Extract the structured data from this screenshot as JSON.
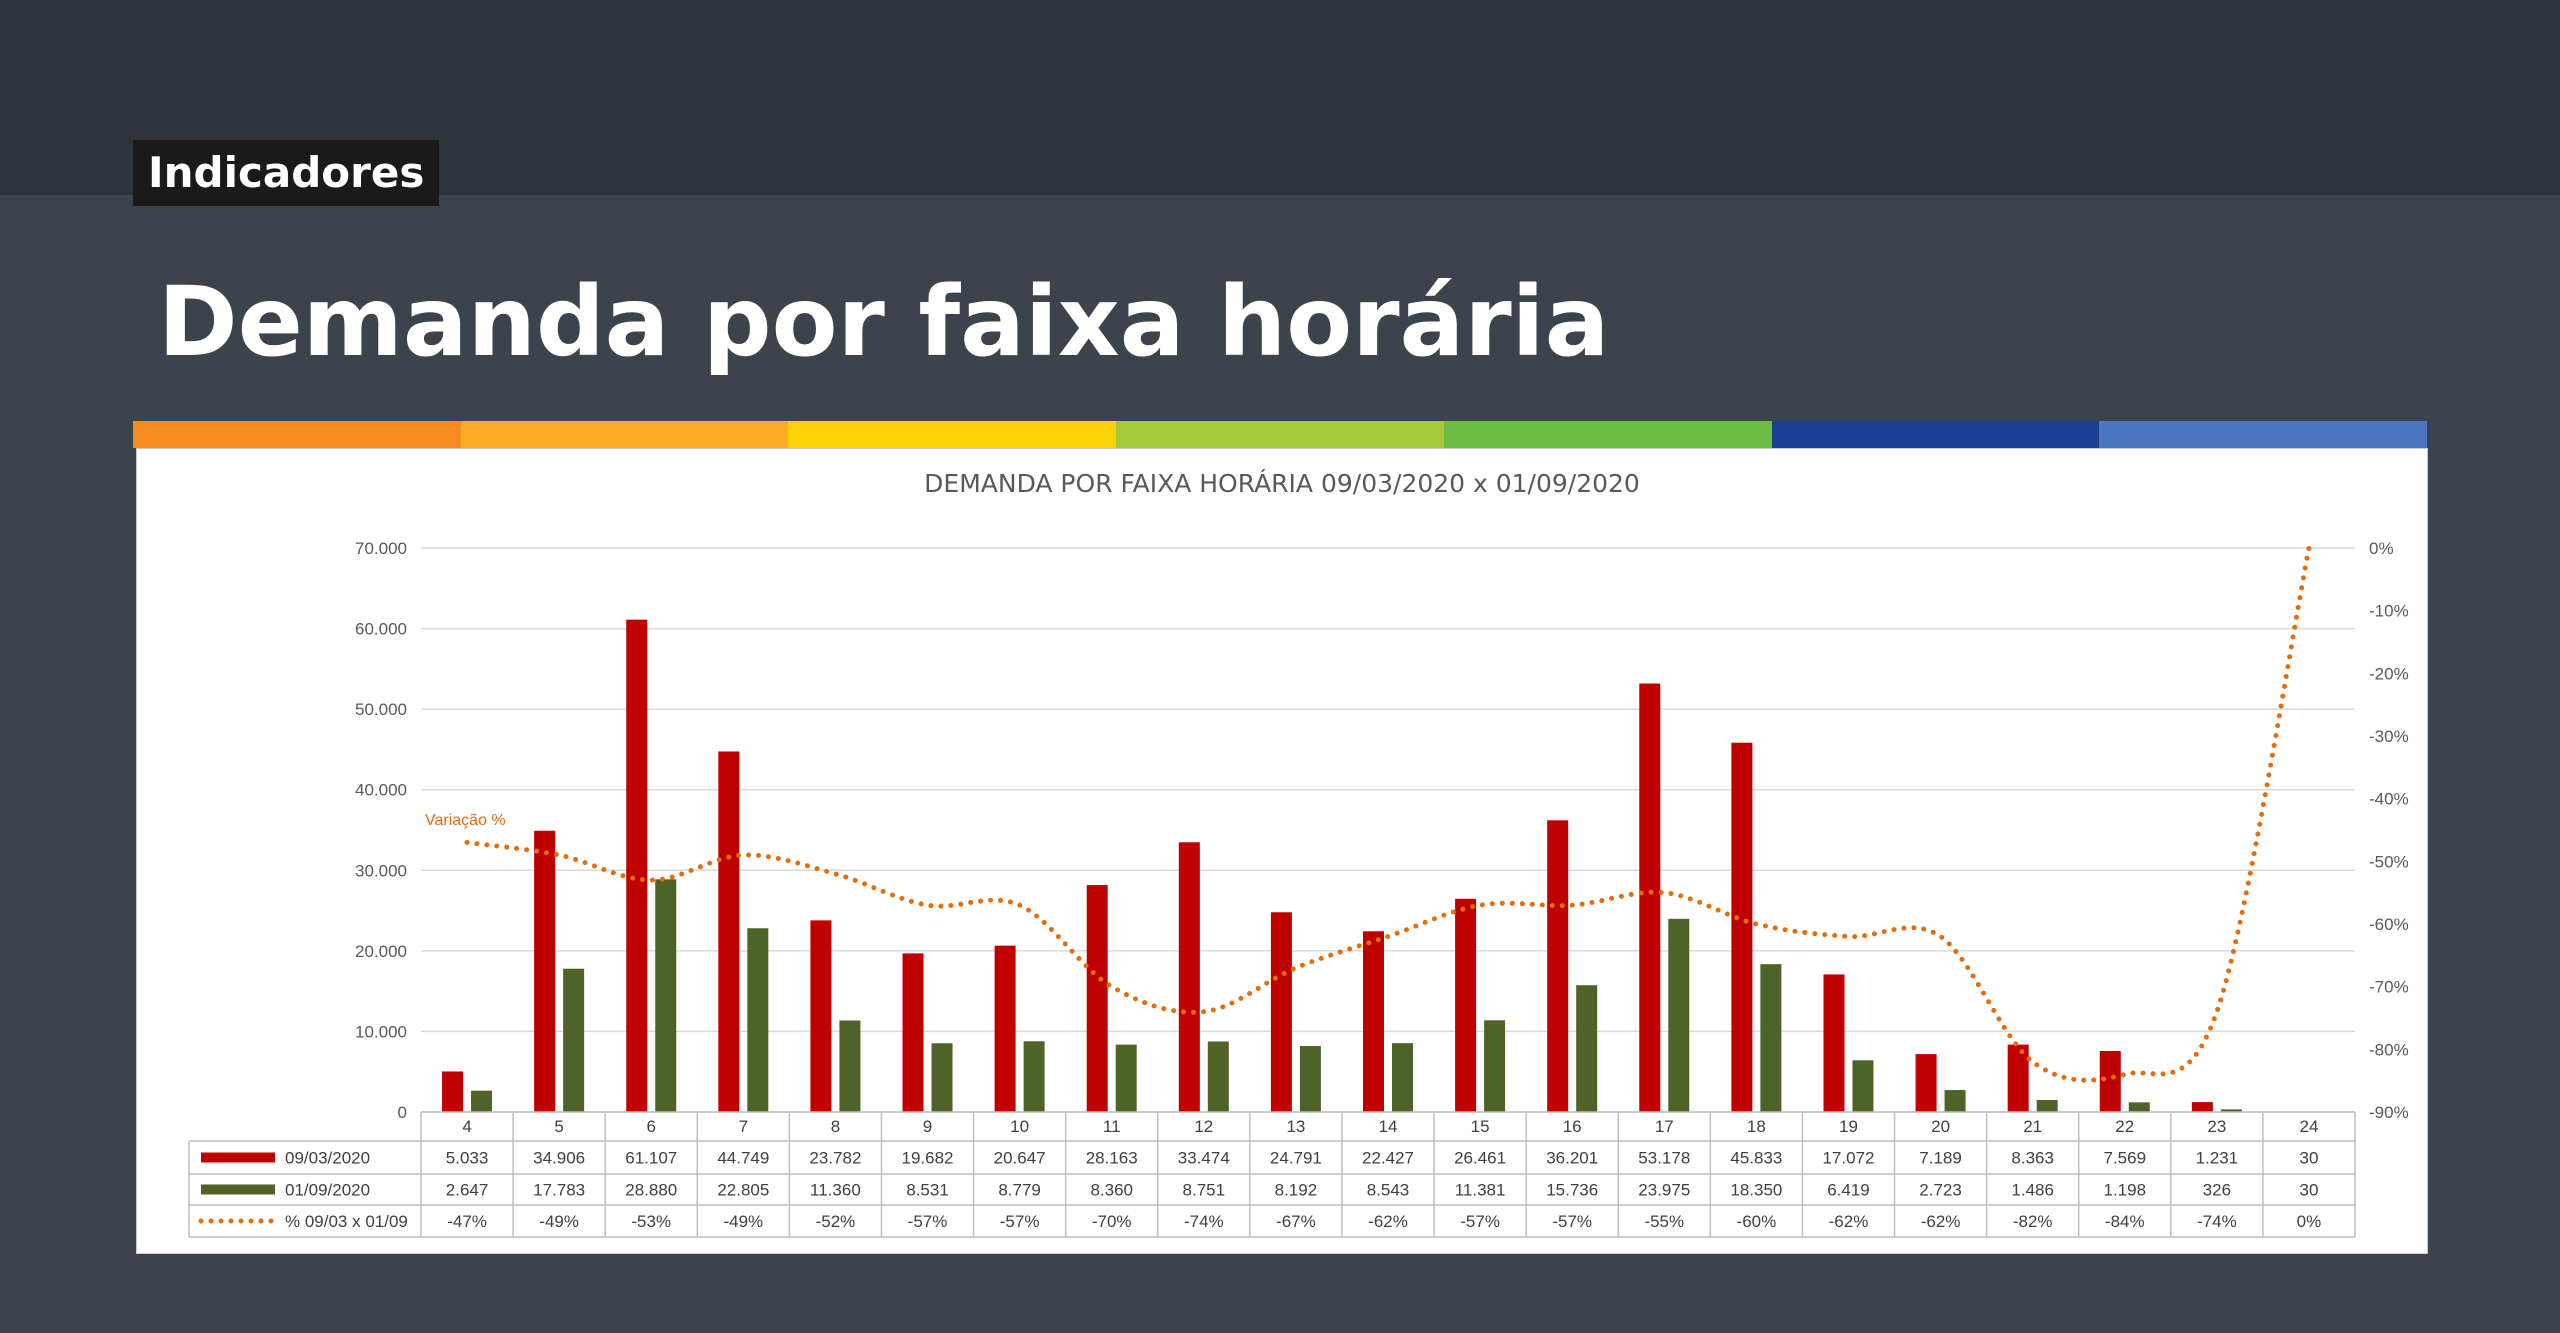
{
  "header": {
    "section_tag": "Indicadores",
    "title": "Demanda por faixa horária",
    "color_strip": [
      "#f68b1f",
      "#fbab26",
      "#fdd107",
      "#a6c93b",
      "#6cbd45",
      "#1c3f94",
      "#4a76c2"
    ]
  },
  "chart_data": {
    "type": "bar",
    "title": "DEMANDA POR FAIXA HORÁRIA 09/03/2020 x 01/09/2020",
    "categories": [
      "4",
      "5",
      "6",
      "7",
      "8",
      "9",
      "10",
      "11",
      "12",
      "13",
      "14",
      "15",
      "16",
      "17",
      "18",
      "19",
      "20",
      "21",
      "22",
      "23",
      "24"
    ],
    "series": [
      {
        "name": "09/03/2020",
        "type": "bar",
        "color": "#c00000",
        "values": [
          5033,
          34906,
          61107,
          44749,
          23782,
          19682,
          20647,
          28163,
          33474,
          24791,
          22427,
          26461,
          36201,
          53178,
          45833,
          17072,
          7189,
          8363,
          7569,
          1231,
          30
        ],
        "labels": [
          "5.033",
          "34.906",
          "61.107",
          "44.749",
          "23.782",
          "19.682",
          "20.647",
          "28.163",
          "33.474",
          "24.791",
          "22.427",
          "26.461",
          "36.201",
          "53.178",
          "45.833",
          "17.072",
          "7.189",
          "8.363",
          "7.569",
          "1.231",
          "30"
        ]
      },
      {
        "name": "01/09/2020",
        "type": "bar",
        "color": "#4f6228",
        "values": [
          2647,
          17783,
          28880,
          22805,
          11360,
          8531,
          8779,
          8360,
          8751,
          8192,
          8543,
          11381,
          15736,
          23975,
          18350,
          6419,
          2723,
          1486,
          1198,
          326,
          30
        ],
        "labels": [
          "2.647",
          "17.783",
          "28.880",
          "22.805",
          "11.360",
          "8.531",
          "8.779",
          "8.360",
          "8.751",
          "8.192",
          "8.543",
          "11.381",
          "15.736",
          "23.975",
          "18.350",
          "6.419",
          "2.723",
          "1.486",
          "1.198",
          "326",
          "30"
        ]
      },
      {
        "name": "% 09/03 x  01/09",
        "type": "line",
        "axis": "right",
        "style": "dotted",
        "color": "#e46c0a",
        "values": [
          -47,
          -49,
          -53,
          -49,
          -52,
          -57,
          -57,
          -70,
          -74,
          -67,
          -62,
          -57,
          -57,
          -55,
          -60,
          -62,
          -62,
          -82,
          -84,
          -74,
          0
        ],
        "labels": [
          "-47%",
          "-49%",
          "-53%",
          "-49%",
          "-52%",
          "-57%",
          "-57%",
          "-70%",
          "-74%",
          "-67%",
          "-62%",
          "-57%",
          "-57%",
          "-55%",
          "-60%",
          "-62%",
          "-62%",
          "-82%",
          "-84%",
          "-74%",
          "0%"
        ]
      }
    ],
    "left_axis": {
      "ylim": [
        0,
        70000
      ],
      "ticks": [
        0,
        10000,
        20000,
        30000,
        40000,
        50000,
        60000,
        70000
      ],
      "tick_labels": [
        "0",
        "10.000",
        "20.000",
        "30.000",
        "40.000",
        "50.000",
        "60.000",
        "70.000"
      ]
    },
    "right_axis": {
      "ylim": [
        -90,
        0
      ],
      "ticks": [
        0,
        -10,
        -20,
        -30,
        -40,
        -50,
        -60,
        -70,
        -80,
        -90
      ],
      "tick_labels": [
        "0%",
        "-10%",
        "-20%",
        "-30%",
        "-40%",
        "-50%",
        "-60%",
        "-70%",
        "-80%",
        "-90%"
      ]
    },
    "annotation": "Variação %",
    "grid": true,
    "data_table": true
  }
}
